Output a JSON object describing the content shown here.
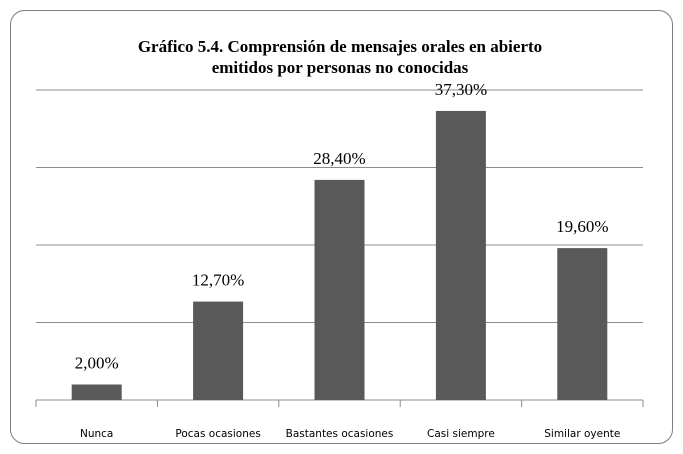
{
  "chart_data": {
    "type": "bar",
    "title_lines": [
      "Gráfico 5.4. Comprensión de mensajes orales en abierto",
      "emitidos por personas  no conocidas"
    ],
    "categories": [
      "Nunca",
      "Pocas ocasiones",
      "Bastantes ocasiones",
      "Casi siempre",
      "Similar oyente"
    ],
    "values": [
      2.0,
      12.7,
      28.4,
      37.3,
      19.6
    ],
    "value_labels": [
      "2,00%",
      "12,70%",
      "28,40%",
      "37,30%",
      "19,60%"
    ],
    "color": "#595959",
    "ylim": [
      0,
      40
    ],
    "yticks": [
      0,
      10,
      20,
      30,
      40
    ],
    "grid": true
  }
}
